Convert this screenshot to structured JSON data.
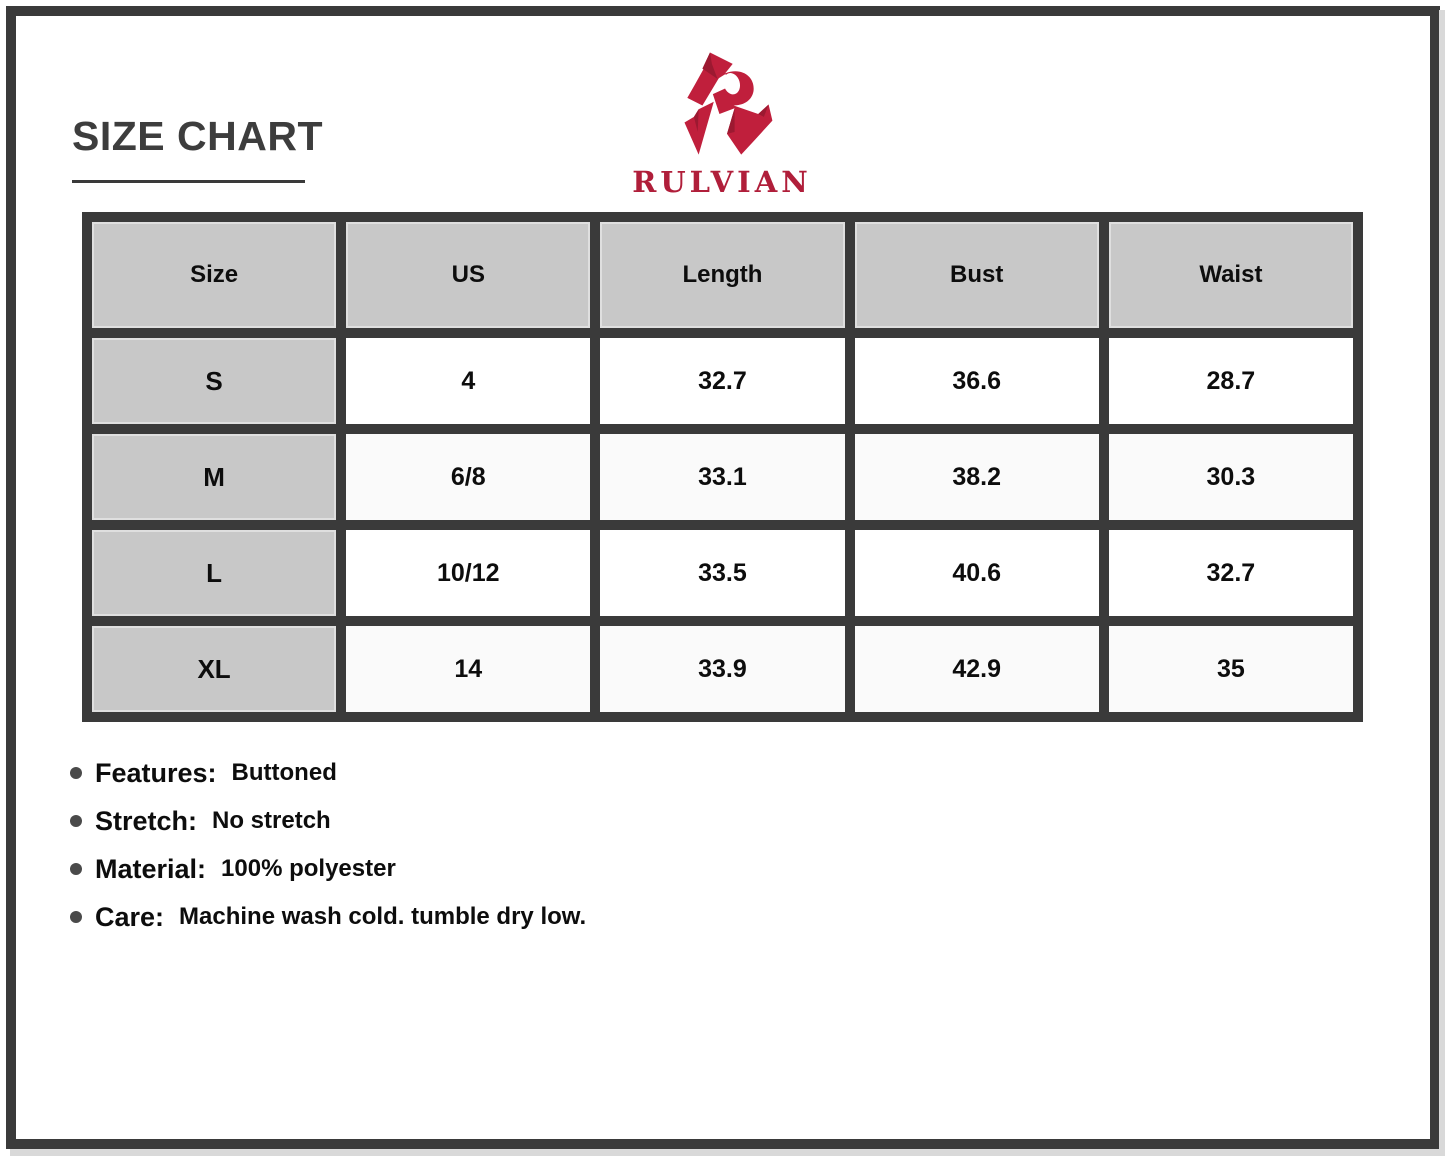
{
  "page": {
    "title": "SIZE CHART"
  },
  "brand": {
    "name": "RULVIAN"
  },
  "size_chart": {
    "columns": [
      "Size",
      "US",
      "Length",
      "Bust",
      "Waist"
    ],
    "rows": [
      [
        "S",
        "4",
        "32.7",
        "36.6",
        "28.7"
      ],
      [
        "M",
        "6/8",
        "33.1",
        "38.2",
        "30.3"
      ],
      [
        "L",
        "10/12",
        "33.5",
        "40.6",
        "32.7"
      ],
      [
        "XL",
        "14",
        "33.9",
        "42.9",
        "35"
      ]
    ]
  },
  "details": [
    {
      "label": "Features:",
      "value": "Buttoned"
    },
    {
      "label": "Stretch:",
      "value": "No stretch"
    },
    {
      "label": "Material:",
      "value": "100% polyester"
    },
    {
      "label": "Care:",
      "value": "Machine wash cold. tumble dry low."
    }
  ],
  "colors": {
    "frame_border": "#3a3a3a",
    "table_border": "#3a3a3a",
    "header_cell_bg": "#c8c8c8",
    "title_text": "#3d3d3d",
    "logo_red": "#c01f3c",
    "logo_red_shadow": "#9c1931",
    "wordmark_red": "#b01e3a"
  }
}
